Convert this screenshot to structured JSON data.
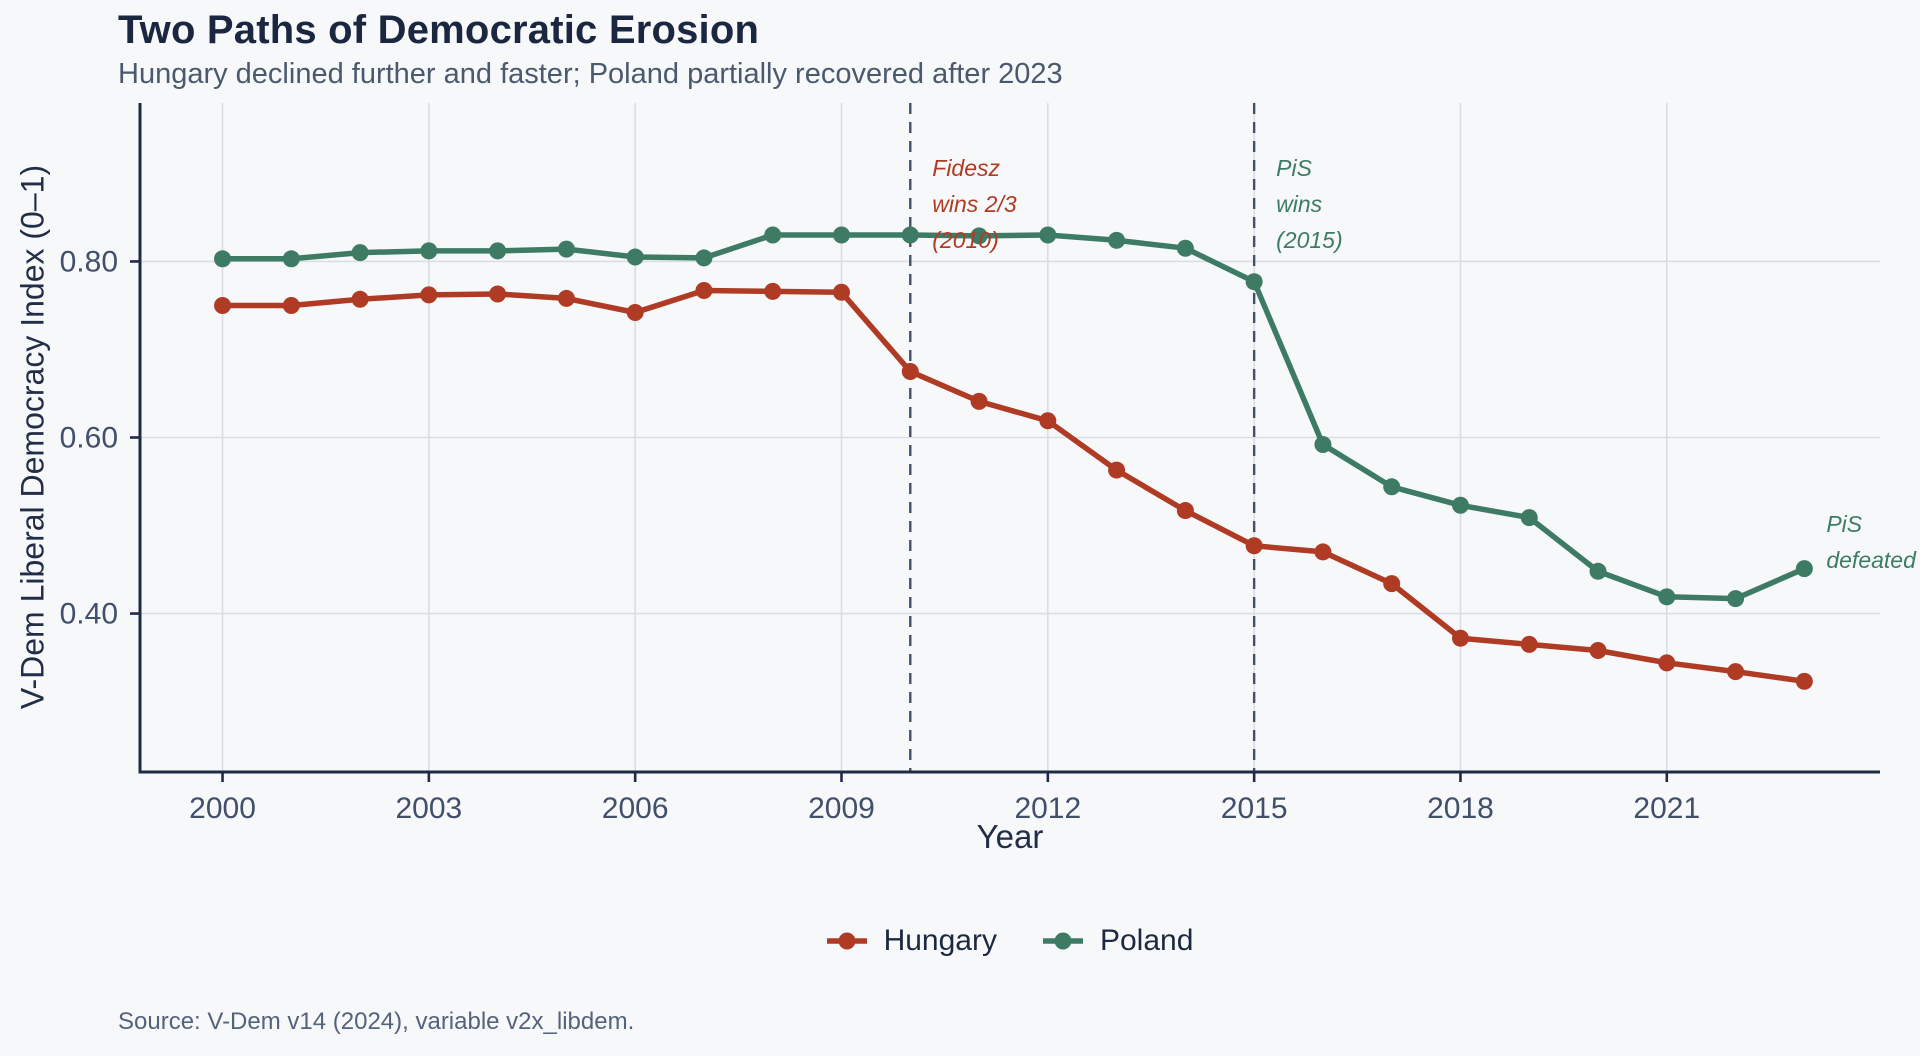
{
  "header": {
    "title": "Two Paths of Democratic Erosion",
    "subtitle": "Hungary declined further and faster; Poland partially recovered after 2023"
  },
  "source": {
    "text": "Source: V-Dem v14 (2024), variable v2x_libdem."
  },
  "legend": {
    "items": [
      {
        "label": "Hungary",
        "color": "#b03b24"
      },
      {
        "label": "Poland",
        "color": "#3e7b64"
      }
    ]
  },
  "chart_data": {
    "type": "line",
    "title": "Two Paths of Democratic Erosion",
    "subtitle": "Hungary declined further and faster; Poland partially recovered after 2023",
    "xlabel": "Year",
    "ylabel": "V-Dem Liberal Democracy Index (0–1)",
    "x": [
      2000,
      2001,
      2002,
      2003,
      2004,
      2005,
      2006,
      2007,
      2008,
      2009,
      2010,
      2011,
      2012,
      2013,
      2014,
      2015,
      2016,
      2017,
      2018,
      2019,
      2020,
      2021,
      2022,
      2023
    ],
    "series": [
      {
        "name": "Hungary",
        "color": "#b03b24",
        "values": [
          0.75,
          0.75,
          0.757,
          0.762,
          0.763,
          0.758,
          0.742,
          0.767,
          0.766,
          0.765,
          0.675,
          0.641,
          0.619,
          0.563,
          0.517,
          0.477,
          0.47,
          0.434,
          0.372,
          0.365,
          0.358,
          0.344,
          0.334,
          0.323
        ]
      },
      {
        "name": "Poland",
        "color": "#3e7b64",
        "values": [
          0.803,
          0.803,
          0.81,
          0.812,
          0.812,
          0.814,
          0.805,
          0.804,
          0.83,
          0.83,
          0.83,
          0.829,
          0.83,
          0.824,
          0.815,
          0.777,
          0.592,
          0.544,
          0.523,
          0.509,
          0.448,
          0.419,
          0.417,
          0.451
        ]
      }
    ],
    "x_ticks": {
      "values": [
        2000,
        2003,
        2006,
        2009,
        2012,
        2015,
        2018,
        2021
      ],
      "labels": [
        "2000",
        "2003",
        "2006",
        "2009",
        "2012",
        "2015",
        "2018",
        "2021"
      ]
    },
    "y_ticks": {
      "values": [
        0.4,
        0.6,
        0.8
      ],
      "labels": [
        "0.40",
        "0.60",
        "0.80"
      ]
    },
    "xlim": [
      1998.8,
      2024.1
    ],
    "ylim": [
      0.22,
      0.98
    ],
    "grid": true,
    "legend_position": "bottom-center",
    "event_lines": [
      {
        "x": 2010,
        "style": "dashed",
        "color": "#44506a"
      },
      {
        "x": 2015,
        "style": "dashed",
        "color": "#44506a"
      }
    ],
    "annotations": [
      {
        "id": "fidesz-2010",
        "lines": [
          "Fidesz",
          "wins 2/3",
          "(2010)"
        ],
        "color": "#b03b24",
        "anchor_x": 2010,
        "anchor_y": 0.927
      },
      {
        "id": "pis-2015",
        "lines": [
          "PiS",
          "wins",
          "(2015)"
        ],
        "color": "#3e7b64",
        "anchor_x": 2015,
        "anchor_y": 0.927
      },
      {
        "id": "pis-defeated",
        "lines": [
          "PiS",
          "defeated"
        ],
        "color": "#3e7b64",
        "anchor_x": 2023,
        "anchor_y": 0.522
      }
    ],
    "style": {
      "background": "#f7f8fa",
      "gridline_color": "#d9dde4",
      "spine_color": "#1f2b45",
      "tick_label_color": "#414f6b",
      "line_width": 5.5,
      "point_radius": 8.5
    }
  }
}
